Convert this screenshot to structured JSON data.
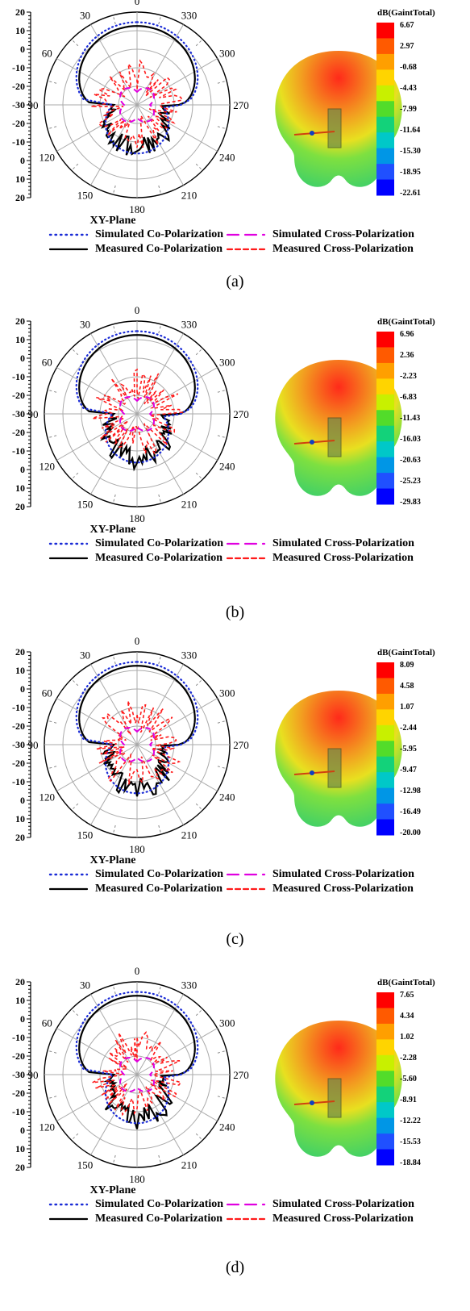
{
  "colorbar_title": "dB(GaintTotal)",
  "axis_title": "XY-Plane",
  "radial_ticks": [
    "20",
    "10",
    "0",
    "-10",
    "-20",
    "-30",
    "-20",
    "-10",
    "0",
    "10",
    "20"
  ],
  "angle_labels": [
    "0",
    "30",
    "60",
    "90",
    "120",
    "150",
    "180",
    "210",
    "240",
    "270",
    "300",
    "330"
  ],
  "legend": {
    "sim_co": "Simulated Co-Polarization",
    "sim_cross": "Simulated Cross-Polarization",
    "meas_co": "Measured Co-Polarization",
    "meas_cross": "Measured Cross-Polarization"
  },
  "colors": {
    "sim_co": "#1a2bd6",
    "sim_cross": "#e000e0",
    "meas_co": "#000000",
    "meas_cross": "#ff1a1a"
  },
  "chart_data": [
    {
      "type": "polar",
      "caption": "(a)",
      "title": "XY-Plane",
      "rlim": [
        -30,
        20
      ],
      "colorbar": [
        "6.67",
        "2.97",
        "-0.68",
        "-4.43",
        "-7.99",
        "-11.64",
        "-15.30",
        "-18.95",
        "-22.61"
      ]
    },
    {
      "type": "polar",
      "caption": "(b)",
      "title": "XY-Plane",
      "rlim": [
        -30,
        20
      ],
      "colorbar": [
        "6.96",
        "2.36",
        "-2.23",
        "-6.83",
        "-11.43",
        "-16.03",
        "-20.63",
        "-25.23",
        "-29.83"
      ]
    },
    {
      "type": "polar",
      "caption": "(c)",
      "title": "XY-Plane",
      "rlim": [
        -30,
        20
      ],
      "colorbar": [
        "8.09",
        "4.58",
        "1.07",
        "-2.44",
        "-5.95",
        "-9.47",
        "-12.98",
        "-16.49",
        "-20.00"
      ]
    },
    {
      "type": "polar",
      "caption": "(d)",
      "title": "XY-Plane",
      "rlim": [
        -30,
        20
      ],
      "colorbar": [
        "7.65",
        "4.34",
        "1.02",
        "-2.28",
        "-5.60",
        "-8.91",
        "-12.22",
        "-15.53",
        "-18.84"
      ]
    }
  ]
}
